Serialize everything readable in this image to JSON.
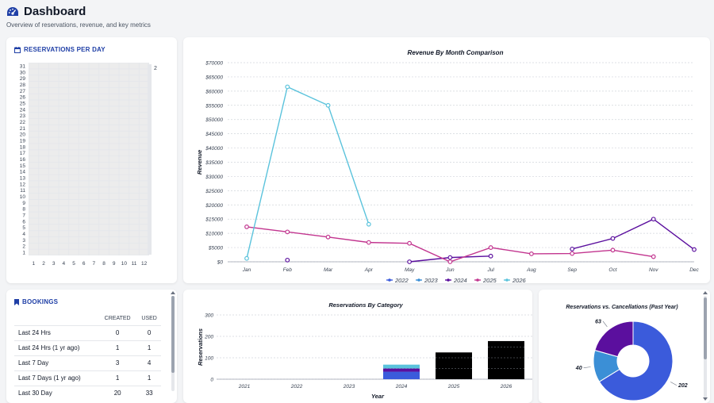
{
  "header": {
    "title": "Dashboard",
    "subtitle": "Overview of reservations, revenue, and key metrics"
  },
  "reservations_per_day": {
    "title": "RESERVATIONS PER DAY",
    "y_labels": [
      "31",
      "30",
      "29",
      "28",
      "27",
      "26",
      "25",
      "24",
      "23",
      "22",
      "21",
      "20",
      "19",
      "18",
      "17",
      "16",
      "15",
      "14",
      "13",
      "12",
      "11",
      "10",
      "9",
      "8",
      "7",
      "6",
      "5",
      "4",
      "3",
      "2",
      "1"
    ],
    "x_labels": [
      "1",
      "2",
      "3",
      "4",
      "5",
      "6",
      "7",
      "8",
      "9",
      "10",
      "11",
      "12"
    ],
    "legend_max": "2"
  },
  "bookings": {
    "title": "BOOKINGS",
    "col_created": "CREATED",
    "col_used": "USED",
    "rows": [
      {
        "label": "Last 24 Hrs",
        "created": "0",
        "used": "0"
      },
      {
        "label": "Last 24 Hrs (1 yr ago)",
        "created": "1",
        "used": "1"
      },
      {
        "label": "Last 7 Day",
        "created": "3",
        "used": "4"
      },
      {
        "label": "Last 7 Days (1 yr ago)",
        "created": "1",
        "used": "1"
      },
      {
        "label": "Last 30 Day",
        "created": "20",
        "used": "33"
      }
    ]
  },
  "colors": {
    "s2022": "#3b5bdb",
    "s2023": "#3b8fd6",
    "s2024": "#5b0f9e",
    "s2025": "#c2358f",
    "s2026": "#5bc3dc",
    "accent": "#1f3fa6"
  },
  "chart_data": [
    {
      "type": "line",
      "title": "Revenue By Month Comparison",
      "ylabel": "Revenue",
      "xlabel": "",
      "categories": [
        "Jan",
        "Feb",
        "Mar",
        "Apr",
        "May",
        "Jun",
        "Jul",
        "Aug",
        "Sep",
        "Oct",
        "Nov",
        "Dec"
      ],
      "y_ticks": [
        "$0",
        "$5000",
        "$10000",
        "$15000",
        "$20000",
        "$25000",
        "$30000",
        "$35000",
        "$40000",
        "$45000",
        "$50000",
        "$55000",
        "$60000",
        "$65000",
        "$70000"
      ],
      "ylim": [
        0,
        70000
      ],
      "legend_position": "bottom",
      "grid": true,
      "series": [
        {
          "name": "2022",
          "values": [
            null,
            null,
            null,
            null,
            null,
            null,
            null,
            null,
            null,
            null,
            null,
            null
          ]
        },
        {
          "name": "2023",
          "values": [
            null,
            null,
            null,
            null,
            null,
            null,
            null,
            null,
            null,
            null,
            null,
            null
          ]
        },
        {
          "name": "2024",
          "values": [
            null,
            600,
            null,
            null,
            0,
            1500,
            2000,
            null,
            4500,
            8200,
            15000,
            4300
          ]
        },
        {
          "name": "2025",
          "values": [
            12300,
            10500,
            8700,
            6800,
            6500,
            0,
            5000,
            2800,
            2900,
            4100,
            1800,
            null
          ]
        },
        {
          "name": "2026",
          "values": [
            1200,
            61500,
            55000,
            13200,
            null,
            null,
            null,
            null,
            null,
            null,
            null,
            null
          ]
        }
      ]
    },
    {
      "type": "bar",
      "title": "Reservations By Category",
      "xlabel": "Year",
      "ylabel": "Reservations",
      "categories": [
        "2021",
        "2022",
        "2023",
        "2024",
        "2025",
        "2026"
      ],
      "y_ticks": [
        "0",
        "100",
        "200",
        "300"
      ],
      "ylim": [
        0,
        300
      ],
      "series": [
        {
          "name": "",
          "color": "#3b5bdb",
          "values": [
            0,
            0,
            0,
            35,
            0,
            0
          ]
        },
        {
          "name": "",
          "color": "#5b0f9e",
          "values": [
            0,
            0,
            0,
            15,
            0,
            0
          ]
        },
        {
          "name": "",
          "color": "#5bc3dc",
          "values": [
            0,
            0,
            0,
            18,
            0,
            0
          ]
        },
        {
          "name": "",
          "color": "#000000",
          "values": [
            0,
            0,
            0,
            0,
            125,
            178
          ]
        }
      ]
    },
    {
      "type": "pie",
      "title": "Reservations vs. Cancellations (Past Year)",
      "slices": [
        {
          "label": "202",
          "value": 202,
          "color": "#3b5bdb"
        },
        {
          "label": "40",
          "value": 40,
          "color": "#3b8fd6"
        },
        {
          "label": "63",
          "value": 63,
          "color": "#5b0f9e"
        }
      ]
    }
  ]
}
